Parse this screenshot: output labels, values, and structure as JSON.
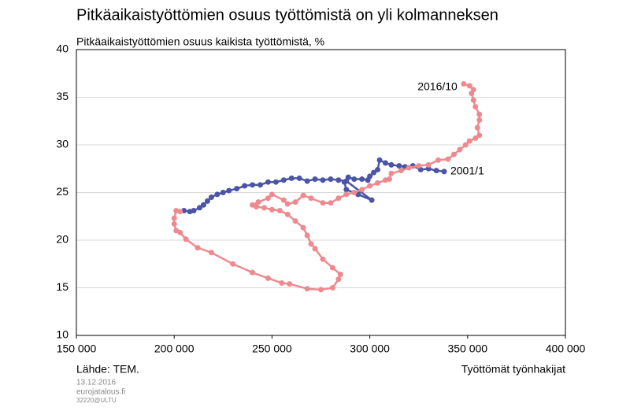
{
  "chart_data": {
    "type": "connected-scatter",
    "title": "Pitkäaikaistyöttömien osuus työttömistä on yli kolmanneksen",
    "subtitle": "Pitkäaikaistyöttömien osuus kaikista työttömistä, %",
    "x_label": "Työttömät työnhakijat",
    "source": "Lähde: TEM.",
    "footer": [
      "13.12.2016",
      "eurojatalous.fi",
      "32220@ULTU"
    ],
    "xlim": [
      150000,
      400000
    ],
    "xticks": [
      {
        "value": 150000,
        "label": "150 000"
      },
      {
        "value": 200000,
        "label": "200 000"
      },
      {
        "value": 250000,
        "label": "250 000"
      },
      {
        "value": 300000,
        "label": "300 000"
      },
      {
        "value": 350000,
        "label": "350 000"
      },
      {
        "value": 400000,
        "label": "400 000"
      }
    ],
    "ylim": [
      10,
      40
    ],
    "yticks": [
      10,
      15,
      20,
      25,
      30,
      35,
      40
    ],
    "grid": true,
    "series": [
      {
        "color": "#4b55a5",
        "start_label": "2001/1",
        "x": [
          338000,
          334000,
          330000,
          326000,
          322000,
          318000,
          315000,
          311000,
          308000,
          305000,
          304000,
          302000,
          300000,
          299000,
          296000,
          292000,
          289000,
          287000,
          288000,
          294000,
          301000,
          288000,
          284000,
          280000,
          276000,
          272000,
          268000,
          264000,
          260000,
          256000,
          252000,
          248000,
          244000,
          240000,
          236000,
          232000,
          228000,
          225000,
          222000,
          219000,
          217000,
          215000,
          213000,
          210000,
          208000,
          205000
        ],
        "y": [
          27.2,
          27.3,
          27.5,
          27.4,
          27.8,
          27.7,
          27.8,
          27.9,
          28.1,
          28.4,
          27.4,
          27.1,
          26.7,
          26.3,
          26.4,
          26.4,
          26.6,
          26.1,
          25.3,
          24.8,
          24.2,
          26.2,
          26.3,
          26.4,
          26.3,
          26.4,
          26.2,
          26.5,
          26.5,
          26.3,
          26.1,
          26.1,
          25.8,
          25.8,
          25.7,
          25.4,
          25.2,
          25.0,
          24.8,
          24.5,
          24.1,
          23.7,
          23.4,
          23.1,
          23.0,
          23.1
        ]
      },
      {
        "color": "#ee8a8f",
        "end_label": "2016/10",
        "x": [
          203000,
          201000,
          200000,
          200000,
          201000,
          203000,
          206000,
          212000,
          219000,
          230000,
          240000,
          248000,
          255000,
          259000,
          268000,
          275000,
          281000,
          284000,
          285000,
          281000,
          276000,
          272000,
          270000,
          268000,
          266000,
          262000,
          258000,
          254000,
          250000,
          246000,
          242000,
          240000,
          243000,
          248000,
          250000,
          256000,
          258000,
          262000,
          266000,
          270000,
          276000,
          280000,
          284000,
          288000,
          292000,
          296000,
          300000,
          304000,
          308000,
          310000,
          311000,
          316000,
          320000,
          325000,
          330000,
          335000,
          340000,
          343000,
          346000,
          349000,
          351000,
          354000,
          356000,
          355000,
          356000,
          356000,
          354000,
          353000,
          352000,
          353000,
          351000,
          348000
        ],
        "y": [
          23.0,
          23.1,
          22.3,
          21.7,
          21.0,
          20.8,
          20.1,
          19.2,
          18.7,
          17.5,
          16.6,
          16.0,
          15.5,
          15.4,
          14.9,
          14.8,
          15.0,
          15.9,
          16.4,
          17.1,
          18.0,
          19.1,
          19.6,
          20.5,
          21.3,
          22.0,
          22.7,
          23.1,
          23.2,
          23.4,
          23.5,
          23.7,
          24.0,
          24.4,
          24.8,
          24.2,
          23.8,
          24.0,
          24.7,
          24.4,
          23.9,
          23.9,
          24.4,
          24.8,
          25.0,
          25.3,
          25.7,
          26.0,
          26.3,
          26.4,
          27.0,
          27.3,
          27.6,
          27.8,
          27.9,
          28.4,
          28.5,
          29.0,
          29.5,
          30.0,
          30.4,
          30.7,
          31.0,
          31.8,
          32.6,
          33.2,
          34.0,
          34.7,
          35.4,
          35.8,
          36.2,
          36.4
        ]
      }
    ]
  }
}
